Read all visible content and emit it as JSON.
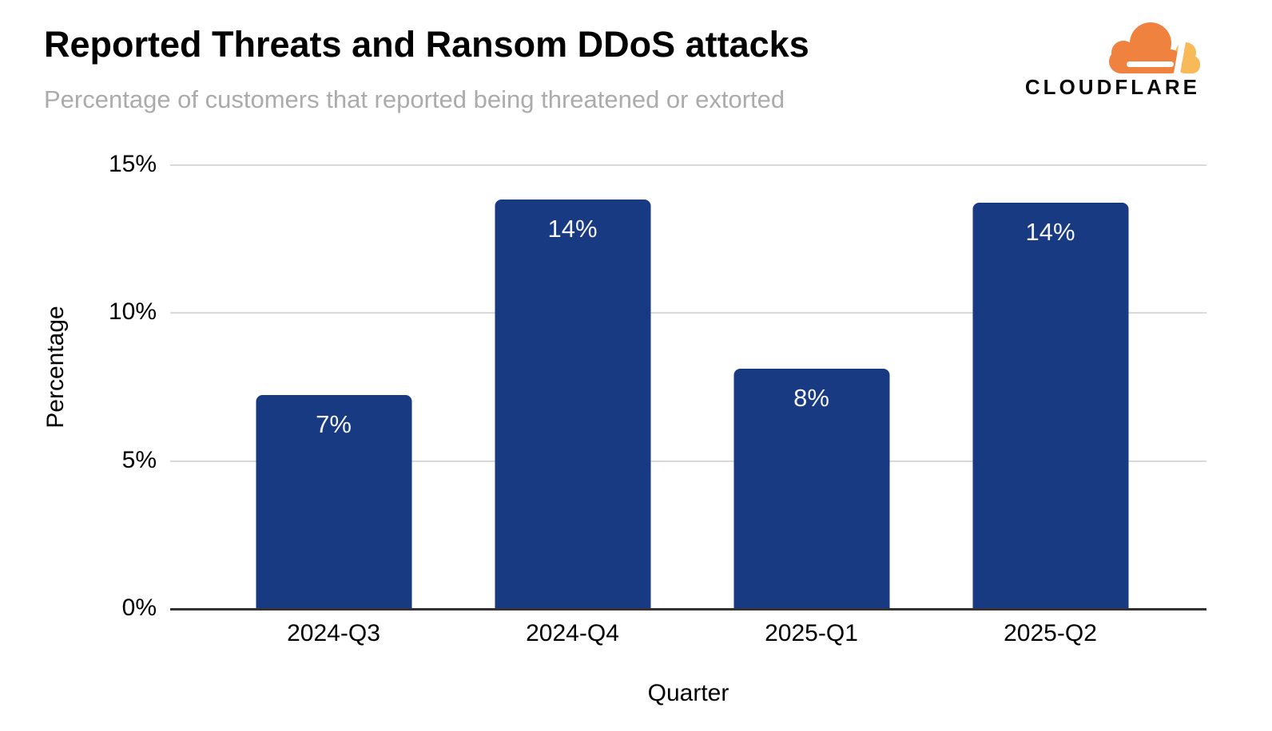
{
  "header": {
    "title": "Reported Threats and Ransom DDoS attacks",
    "subtitle": "Percentage of customers that reported being threatened or extorted"
  },
  "logo": {
    "wordmark": "CLOUDFLARE",
    "cloud_primary_color": "#F0823F",
    "cloud_secondary_color": "#F8B959"
  },
  "chart_data": {
    "type": "bar",
    "title": "Reported Threats and Ransom DDoS attacks",
    "subtitle": "Percentage of customers that reported being threatened or extorted",
    "categories": [
      "2024-Q3",
      "2024-Q4",
      "2025-Q1",
      "2025-Q2"
    ],
    "values": [
      7.2,
      13.8,
      8.1,
      13.7
    ],
    "value_labels": [
      "7%",
      "14%",
      "8%",
      "14%"
    ],
    "xlabel": "Quarter",
    "ylabel": "Percentage",
    "ylim": [
      0,
      15
    ],
    "yticks": [
      0,
      5,
      10,
      15
    ],
    "ytick_labels": [
      "0%",
      "5%",
      "10%",
      "15%"
    ],
    "grid": "horizontal",
    "legend": "none",
    "bar_color": "#183A82",
    "bar_label_color": "#F5F5F5",
    "gridline_color": "#d9d9d9",
    "axis_line_color": "#333333"
  }
}
